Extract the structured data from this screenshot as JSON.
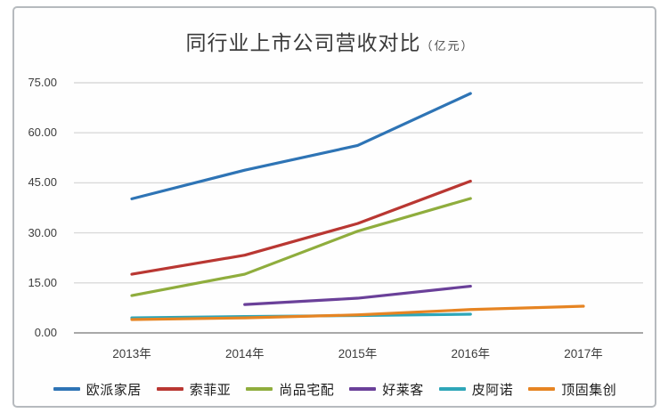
{
  "chart_data": {
    "type": "line",
    "title": "同行业上市公司营收对比",
    "title_unit": "（亿元）",
    "categories": [
      "2013年",
      "2014年",
      "2015年",
      "2016年",
      "2017年"
    ],
    "y_tick_labels": [
      "0.00",
      "15.00",
      "30.00",
      "45.00",
      "60.00",
      "75.00"
    ],
    "y_tick_values": [
      0,
      15,
      30,
      45,
      60,
      75
    ],
    "ylim": [
      0,
      75
    ],
    "grid": "horizontal-only",
    "legend_position": "bottom",
    "axis_color": "#a8a8a8",
    "gridline_color": "#d9d9d9",
    "series": [
      {
        "name": "欧派家居",
        "color": "#2E74B5",
        "values": [
          40.2,
          48.8,
          56.2,
          71.8,
          null
        ]
      },
      {
        "name": "索菲亚",
        "color": "#B93732",
        "values": [
          17.6,
          23.3,
          32.8,
          45.5,
          null
        ]
      },
      {
        "name": "尚品宅配",
        "color": "#8FAD3D",
        "values": [
          11.2,
          17.6,
          30.5,
          40.3,
          null
        ]
      },
      {
        "name": "好莱客",
        "color": "#6A4099",
        "values": [
          null,
          8.5,
          10.4,
          14.0,
          null
        ]
      },
      {
        "name": "皮阿诺",
        "color": "#2EA6B8",
        "values": [
          4.5,
          4.9,
          5.2,
          5.6,
          null
        ]
      },
      {
        "name": "顶固集创",
        "color": "#E68422",
        "values": [
          4.0,
          4.5,
          5.4,
          7.0,
          8.0
        ]
      }
    ]
  }
}
